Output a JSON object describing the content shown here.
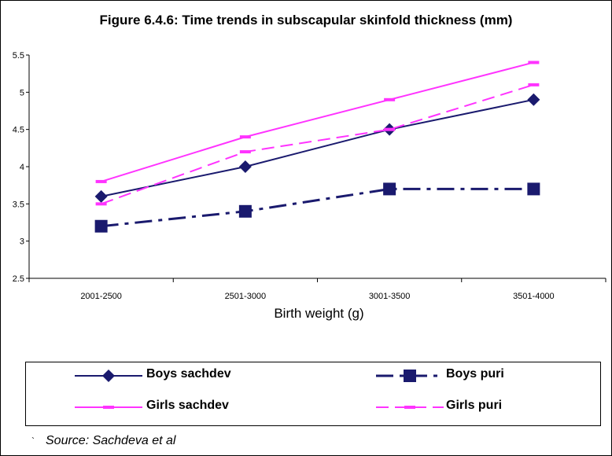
{
  "chart_data": {
    "type": "line",
    "title": "Figure 6.4.6: Time trends in subscapular skinfold thickness (mm)",
    "xlabel": "Birth weight (g)",
    "ylabel": "",
    "categories": [
      "2001-2500",
      "2501-3000",
      "3001-3500",
      "3501-4000"
    ],
    "ylim": [
      2.5,
      5.5
    ],
    "yticks": [
      "5.5",
      "5",
      "4.5",
      "4",
      "3.5",
      "3",
      "2.5"
    ],
    "grid": false,
    "legend_position": "bottom",
    "series": [
      {
        "name": "Boys sachdev",
        "values": [
          3.6,
          4.0,
          4.5,
          4.9
        ],
        "color": "#1a1a6e",
        "marker": "diamond",
        "dash": "solid"
      },
      {
        "name": "Boys puri",
        "values": [
          3.2,
          3.4,
          3.7,
          3.7
        ],
        "color": "#1a1a6e",
        "marker": "square",
        "dash": "dashdot"
      },
      {
        "name": "Girls sachdev",
        "values": [
          3.8,
          4.4,
          4.9,
          5.4
        ],
        "color": "#ff33ff",
        "marker": "dash",
        "dash": "solid"
      },
      {
        "name": "Girls puri",
        "values": [
          3.5,
          4.2,
          4.5,
          5.1
        ],
        "color": "#ff33ff",
        "marker": "dash",
        "dash": "dashed"
      }
    ]
  },
  "source_text": "Source: Sachdeva et al",
  "stray_mark": "`"
}
